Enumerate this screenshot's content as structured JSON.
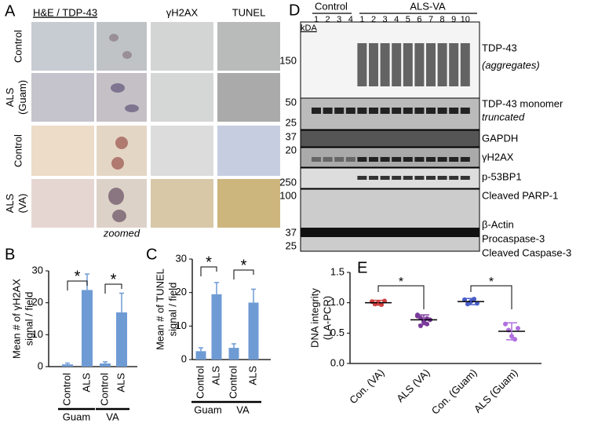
{
  "panel_a": {
    "letter": "A",
    "headers": [
      "H&E / TDP-43",
      "γH2AX",
      "TUNEL"
    ],
    "rows": [
      "Control",
      "ALS (Guam)",
      "Control",
      "ALS (VA)"
    ],
    "note": "zoomed"
  },
  "panel_d": {
    "letter": "D",
    "unit": "kDA",
    "groups": [
      "Control",
      "ALS-VA"
    ],
    "control_lanes": [
      "1",
      "2",
      "3",
      "4"
    ],
    "als_lanes": [
      "1",
      "2",
      "3",
      "4",
      "5",
      "6",
      "7",
      "8",
      "9",
      "10"
    ],
    "markers": [
      "150",
      "50",
      "25",
      "37",
      "20",
      "250",
      "100",
      "37",
      "25"
    ],
    "proteins": [
      "TDP-43",
      "(aggregates)",
      "TDP-43 monomer",
      "truncated",
      "GAPDH",
      "γH2AX",
      "p-53BP1",
      "Cleaved PARP-1",
      "β-Actin",
      "Procaspase-3",
      "Cleaved Caspase-3"
    ]
  },
  "chart_data": [
    {
      "type": "bar",
      "letter": "B",
      "ylabel": [
        "Mean # of γH2AX",
        "signal / field"
      ],
      "categories": [
        "Control",
        "ALS",
        "Control",
        "ALS"
      ],
      "groups": [
        "Guam",
        "VA"
      ],
      "values": [
        0.7,
        24,
        1,
        17
      ],
      "errors": [
        0.4,
        5,
        0.5,
        6
      ],
      "color": "#6f9bd4",
      "ylim": [
        0,
        30
      ],
      "yticks": [
        0,
        10,
        20,
        30
      ],
      "annotations": [
        "*",
        "*"
      ]
    },
    {
      "type": "bar",
      "letter": "C",
      "ylabel": [
        "Mean # of TUNEL",
        "signal / field"
      ],
      "categories": [
        "Control",
        "ALS",
        "Control",
        "ALS"
      ],
      "groups": [
        "Guam",
        "VA"
      ],
      "values": [
        2.5,
        19.5,
        3.5,
        17
      ],
      "errors": [
        1,
        3.5,
        1.2,
        4
      ],
      "color": "#6f9bd4",
      "ylim": [
        0,
        30
      ],
      "yticks": [
        0,
        10,
        20,
        30
      ],
      "annotations": [
        "*",
        "*"
      ]
    },
    {
      "type": "dotplot",
      "letter": "E",
      "ylabel": [
        "DNA integrity",
        "(LA-PCR)"
      ],
      "categories": [
        "Con. (VA)",
        "ALS (VA)",
        "Con. (Guam)",
        "ALS (Guam)"
      ],
      "means": [
        1.0,
        0.72,
        1.02,
        0.53
      ],
      "errors": [
        0.04,
        0.08,
        0.05,
        0.14
      ],
      "points": [
        [
          1.02,
          0.98,
          1.0,
          0.97,
          1.03
        ],
        [
          0.8,
          0.75,
          0.7,
          0.65,
          0.72,
          0.78,
          0.62,
          0.68,
          0.74
        ],
        [
          1.05,
          0.98,
          1.02,
          1.06,
          0.99
        ],
        [
          0.65,
          0.55,
          0.45,
          0.4,
          0.58
        ]
      ],
      "colors": [
        "#d04040",
        "#7a3a9a",
        "#4a5ec8",
        "#b070e0"
      ],
      "ylim": [
        0,
        1.5
      ],
      "yticks": [
        {
          "value": 0,
          "label": "0.0"
        },
        {
          "value": 0.5,
          "label": "0.5"
        },
        {
          "value": 1,
          "label": "1.0"
        },
        {
          "value": 1.5,
          "label": "1.5"
        }
      ],
      "annotations": [
        "*",
        "*"
      ]
    }
  ]
}
